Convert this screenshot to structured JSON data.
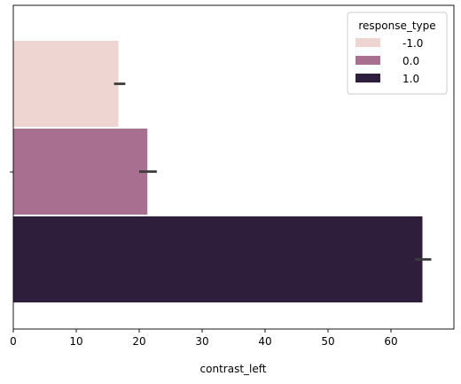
{
  "chart_data": {
    "type": "bar",
    "orientation": "horizontal",
    "xlabel": "contrast_left",
    "ylabel": "",
    "xlim": [
      0,
      70
    ],
    "xticks": [
      0,
      10,
      20,
      30,
      40,
      50,
      60
    ],
    "grid": false,
    "legend": {
      "title": "response_type",
      "placement": "top-right",
      "entries": [
        "-1.0",
        "0.0",
        "1.0"
      ]
    },
    "series": [
      {
        "name": "-1.0",
        "value": 16.7,
        "ci": [
          16.0,
          17.8
        ],
        "color": "#eed5d2"
      },
      {
        "name": "0.0",
        "value": 21.3,
        "ci": [
          20.0,
          22.8
        ],
        "color": "#a86f90"
      },
      {
        "name": "1.0",
        "value": 65.0,
        "ci": [
          63.8,
          66.4
        ],
        "color": "#2e1e3c"
      }
    ]
  }
}
